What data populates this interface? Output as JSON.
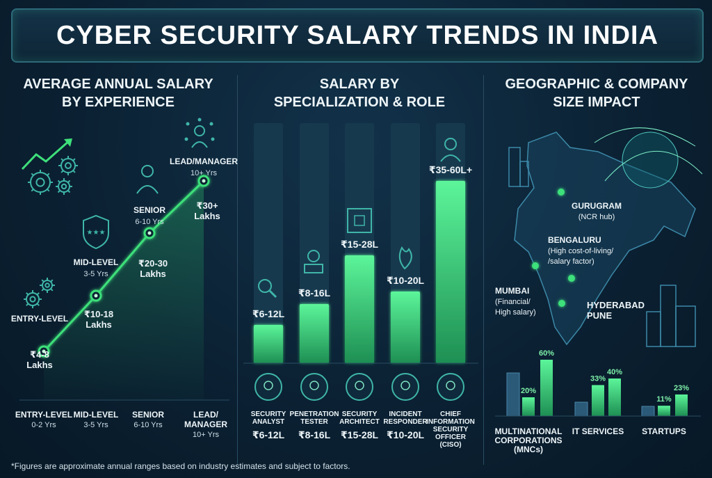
{
  "title": "CYBER SECURITY SALARY TRENDS IN INDIA",
  "footnote": "*Figures are approximate annual ranges based on industry estimates and subject to factors.",
  "colors": {
    "accent": "#3ee07a",
    "bar_bg": "#17394e",
    "text": "#e6f1f5"
  },
  "chart_data": [
    {
      "type": "line",
      "title": "AVERAGE ANNUAL SALARY BY EXPERIENCE",
      "unit": "₹ Lakhs",
      "points": [
        {
          "level": "ENTRY-LEVEL",
          "years": "0-2 Yrs",
          "value_low": 4,
          "value_high": 8,
          "label_line1": "₹4-8",
          "label_line2": "Lakhs",
          "callout": "ENTRY-LEVEL",
          "callout_years": ""
        },
        {
          "level": "MID-LEVEL",
          "years": "3-5 Yrs",
          "value_low": 10,
          "value_high": 18,
          "label_line1": "₹10-18",
          "label_line2": "Lakhs",
          "callout": "MID-LEVEL",
          "callout_years": "3-5 Yrs"
        },
        {
          "level": "SENIOR",
          "years": "6-10 Yrs",
          "value_low": 20,
          "value_high": 30,
          "label_line1": "₹20-30",
          "label_line2": "Lakhs",
          "callout": "SENIOR",
          "callout_years": "6-10 Yrs"
        },
        {
          "level": "LEAD/ MANAGER",
          "years": "10+ Yrs",
          "value_low": 30,
          "value_high": null,
          "label_line1": "₹30+",
          "label_line2": "Lakhs",
          "callout": "LEAD/MANAGER",
          "callout_years": "10+ Yrs"
        }
      ],
      "icons": [
        "gears-growth-icon",
        "gear-icon",
        "shield-stars-icon",
        "senior-person-icon",
        "manager-network-icon"
      ]
    },
    {
      "type": "bar",
      "title": "SALARY BY SPECIALIZATION & ROLE",
      "unit": "₹ Lakhs",
      "categories": [
        [
          "SECURITY",
          "ANALYST"
        ],
        [
          "PENETRATION",
          "TESTER"
        ],
        [
          "SECURITY",
          "ARCHITECT"
        ],
        [
          "INCIDENT",
          "RESPONDER"
        ],
        [
          "CHIEF",
          "INFORMATION",
          "SECURITY",
          "OFFICER",
          "(CISO)"
        ]
      ],
      "value_low": [
        6,
        8,
        15,
        10,
        35
      ],
      "value_high": [
        12,
        16,
        28,
        20,
        60
      ],
      "bar_labels": [
        "₹6-12L",
        "₹8-16L",
        "₹15-28L",
        "₹10-20L",
        "₹35-60L+"
      ],
      "icons": [
        "magnifier-icon",
        "hacker-icon",
        "blueprint-icon",
        "flame-icon",
        "executive-icon"
      ],
      "ylim": [
        0,
        70
      ]
    },
    {
      "type": "bar",
      "title": "GEOGRAPHIC & COMPANY SIZE IMPACT",
      "unit": "%",
      "groups": [
        {
          "name": [
            "MULTINATIONAL",
            "CORPORATIONS",
            "(MNCs)"
          ],
          "values": [
            null,
            20,
            60
          ],
          "labels": [
            "",
            "20%",
            "60%"
          ]
        },
        {
          "name": [
            "IT SERVICES"
          ],
          "values": [
            null,
            33,
            40
          ],
          "labels": [
            "",
            "33%",
            "40%"
          ]
        },
        {
          "name": [
            "STARTUPS"
          ],
          "values": [
            null,
            11,
            23
          ],
          "labels": [
            "",
            "11%",
            "23%"
          ]
        }
      ],
      "ylim": [
        0,
        70
      ]
    }
  ],
  "map": {
    "cities": [
      {
        "name": "GURUGRAM",
        "note": [
          "(NCR hub)"
        ]
      },
      {
        "name": "BENGALURU",
        "note": [
          "(High cost-of-living/",
          "/salary factor)"
        ]
      },
      {
        "name": "MUMBAI",
        "note": [
          "(Financial/",
          "High salary)"
        ]
      },
      {
        "name": "HYDERABAD",
        "note": []
      },
      {
        "name": "PUNE",
        "note": []
      }
    ]
  }
}
